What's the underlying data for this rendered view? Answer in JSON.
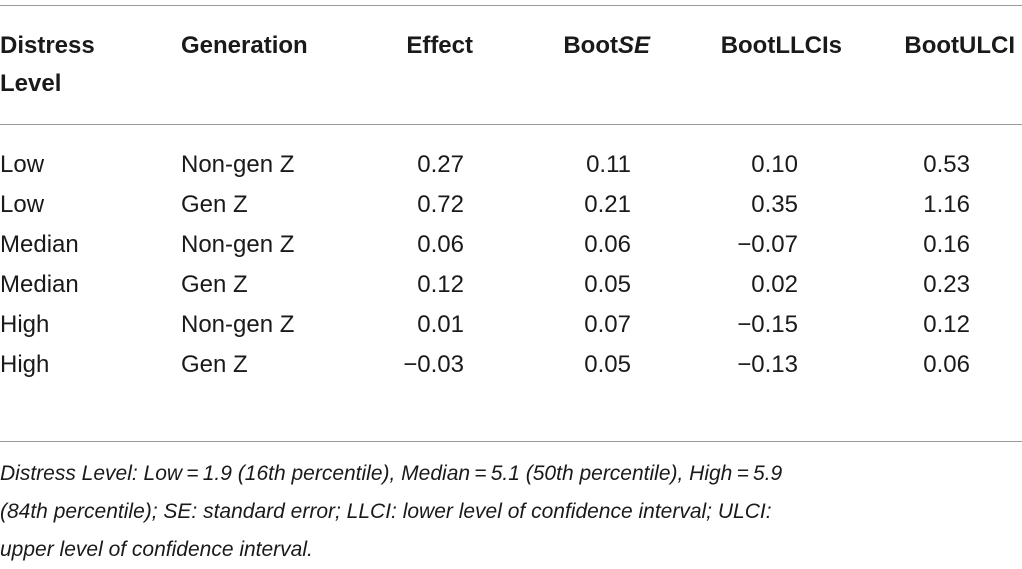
{
  "table": {
    "headers": {
      "distress_line1": "Distress",
      "distress_line2": "Level",
      "generation": "Generation",
      "effect": "Effect",
      "bootse_prefix": "Boot",
      "bootse_italic": "SE",
      "bootllcis": "BootLLCIs",
      "bootulci": "BootULCI"
    },
    "rows": [
      {
        "level": "Low",
        "generation": "Non-gen Z",
        "effect": "0.27",
        "bootse": "0.11",
        "llci": "0.10",
        "ulci": "0.53"
      },
      {
        "level": "Low",
        "generation": "Gen Z",
        "effect": "0.72",
        "bootse": "0.21",
        "llci": "0.35",
        "ulci": "1.16"
      },
      {
        "level": "Median",
        "generation": "Non-gen Z",
        "effect": "0.06",
        "bootse": "0.06",
        "llci": "−0.07",
        "ulci": "0.16"
      },
      {
        "level": "Median",
        "generation": "Gen Z",
        "effect": "0.12",
        "bootse": "0.05",
        "llci": "0.02",
        "ulci": "0.23"
      },
      {
        "level": "High",
        "generation": "Non-gen Z",
        "effect": "0.01",
        "bootse": "0.07",
        "llci": "−0.15",
        "ulci": "0.12"
      },
      {
        "level": "High",
        "generation": "Gen Z",
        "effect": "−0.03",
        "bootse": "0.05",
        "llci": "−0.13",
        "ulci": "0.06"
      }
    ]
  },
  "footnote": {
    "line1": "Distress Level: Low = 1.9 (16th percentile), Median = 5.1 (50th percentile), High = 5.9",
    "line2": "(84th percentile); SE: standard error; LLCI: lower level of confidence interval; ULCI:",
    "line3": "upper level of confidence interval."
  }
}
